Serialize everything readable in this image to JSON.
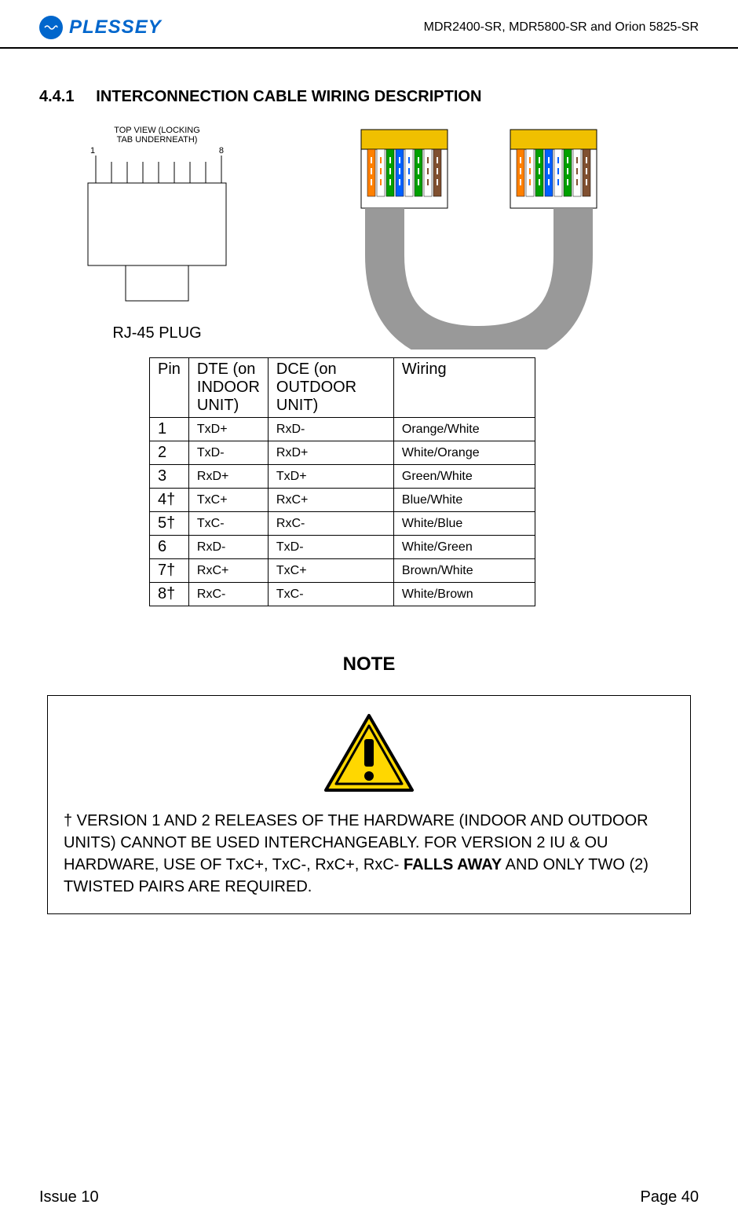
{
  "header": {
    "logo_text": "PLESSEY",
    "product_line": "MDR2400-SR, MDR5800-SR and Orion 5825-SR"
  },
  "section": {
    "number": "4.4.1",
    "title": "INTERCONNECTION CABLE WIRING DESCRIPTION"
  },
  "rj45_diagram": {
    "top_label_line1": "TOP VIEW (LOCKING",
    "top_label_line2": "TAB UNDERNEATH)",
    "pin_left": "1",
    "pin_right": "8",
    "caption": "RJ-45 PLUG"
  },
  "cable_colors": {
    "connector_top": "#f0c000",
    "wire_colors": [
      "#ff8000",
      "#ffffff",
      "#00a000",
      "#0060ff",
      "#ffffff",
      "#00a000",
      "#ffffff",
      "#805030"
    ],
    "cable_gray": "#999999"
  },
  "pin_table": {
    "headers": {
      "col1": "Pin",
      "col2": "DTE (on INDOOR UNIT)",
      "col3": "DCE (on OUTDOOR UNIT)",
      "col4": "Wiring"
    },
    "rows": [
      {
        "pin": "1",
        "dte": "TxD+",
        "dce": "RxD-",
        "wiring": "Orange/White"
      },
      {
        "pin": "2",
        "dte": "TxD-",
        "dce": "RxD+",
        "wiring": "White/Orange"
      },
      {
        "pin": "3",
        "dte": "RxD+",
        "dce": "TxD+",
        "wiring": "Green/White"
      },
      {
        "pin": "4†",
        "dte": "TxC+",
        "dce": "RxC+",
        "wiring": "Blue/White"
      },
      {
        "pin": "5†",
        "dte": "TxC-",
        "dce": "RxC-",
        "wiring": "White/Blue"
      },
      {
        "pin": "6",
        "dte": "RxD-",
        "dce": "TxD-",
        "wiring": "White/Green"
      },
      {
        "pin": "7†",
        "dte": "RxC+",
        "dce": "TxC+",
        "wiring": "Brown/White"
      },
      {
        "pin": "8†",
        "dte": "RxC-",
        "dce": "TxC-",
        "wiring": "White/Brown"
      }
    ]
  },
  "note": {
    "title": "NOTE",
    "text_parts": {
      "p1": "†  VERSION 1 AND 2 RELEASES OF THE HARDWARE (INDOOR AND OUTDOOR UNITS) CANNOT BE USED INTERCHANGEABLY.   FOR VERSION 2 IU & OU HARDWARE, USE OF TxC+, TxC-, RxC+, RxC- ",
      "bold": "FALLS AWAY",
      "p2": " AND ONLY TWO (2) TWISTED PAIRS ARE REQUIRED."
    },
    "caution_colors": {
      "triangle_border": "#000000",
      "triangle_fill": "#ffd700"
    }
  },
  "footer": {
    "left": "Issue 10",
    "right": "Page 40"
  }
}
